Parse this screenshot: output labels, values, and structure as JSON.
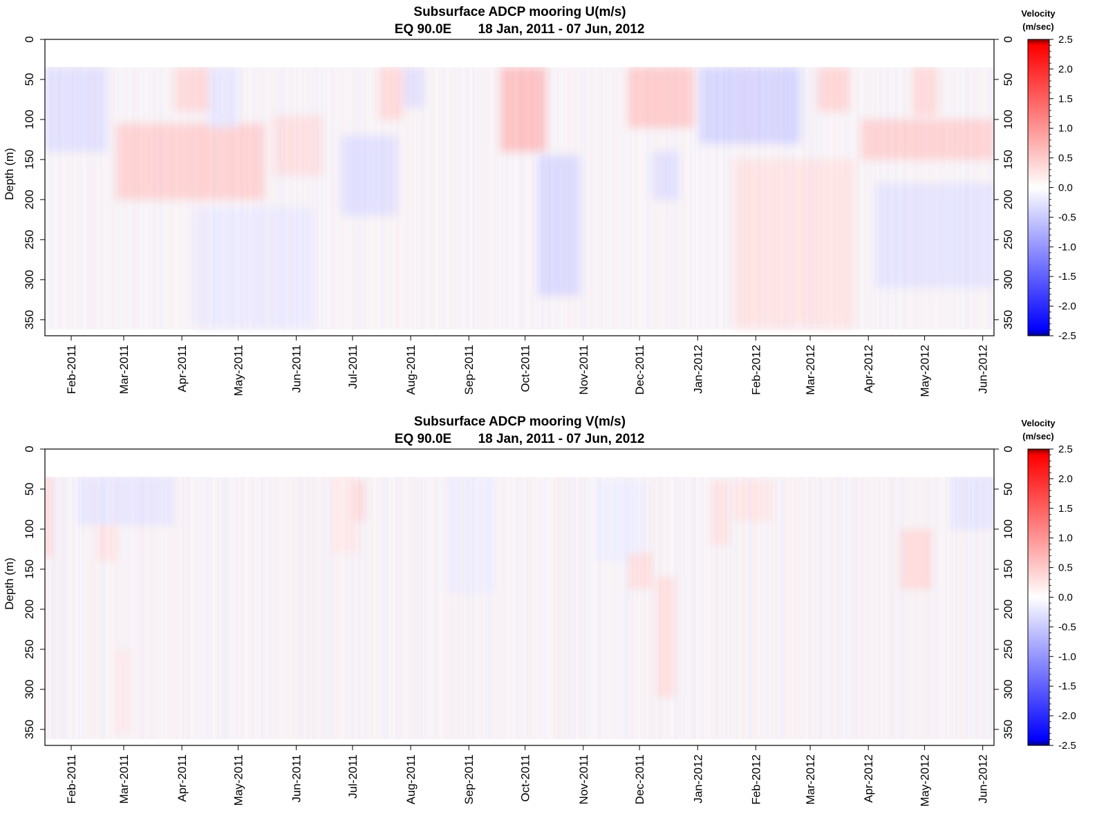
{
  "chart_data": [
    {
      "type": "heatmap",
      "title": "Subsurface ADCP mooring U(m/s)",
      "subtitle_location": "EQ 90.0E",
      "subtitle_period": "18 Jan, 2011 - 07 Jun, 2012",
      "ylabel": "Depth (m)",
      "xlim": [
        "2011-01-18",
        "2012-06-07"
      ],
      "ylim": [
        0,
        370
      ],
      "y_reversed": true,
      "data_top_depth": 35,
      "data_bottom_depth": 362,
      "y_ticks": [
        "0",
        "50",
        "100",
        "150",
        "200",
        "250",
        "300",
        "350"
      ],
      "x_tick_labels": [
        "Feb-2011",
        "Mar-2011",
        "Apr-2011",
        "May-2011",
        "Jun-2011",
        "Jul-2011",
        "Aug-2011",
        "Sep-2011",
        "Oct-2011",
        "Nov-2011",
        "Dec-2011",
        "Jan-2012",
        "Feb-2012",
        "Mar-2012",
        "Apr-2012",
        "May-2012",
        "Jun-2012"
      ],
      "x_tick_dates": [
        "2011-02-01",
        "2011-03-01",
        "2011-04-01",
        "2011-05-01",
        "2011-06-01",
        "2011-07-01",
        "2011-08-01",
        "2011-09-01",
        "2011-10-01",
        "2011-11-01",
        "2011-12-01",
        "2012-01-01",
        "2012-02-01",
        "2012-03-01",
        "2012-04-01",
        "2012-05-01",
        "2012-06-01"
      ],
      "features": [
        {
          "start": "2011-01-18",
          "end": "2011-02-20",
          "depth_top": 35,
          "depth_bottom": 140,
          "value": -0.4
        },
        {
          "start": "2011-02-25",
          "end": "2011-05-15",
          "depth_top": 105,
          "depth_bottom": 200,
          "value": 0.6
        },
        {
          "start": "2011-03-28",
          "end": "2011-04-18",
          "depth_top": 35,
          "depth_bottom": 90,
          "value": 0.5
        },
        {
          "start": "2011-04-15",
          "end": "2011-05-01",
          "depth_top": 35,
          "depth_bottom": 110,
          "value": -0.3
        },
        {
          "start": "2011-04-08",
          "end": "2011-06-10",
          "depth_top": 210,
          "depth_bottom": 360,
          "value": -0.25
        },
        {
          "start": "2011-05-20",
          "end": "2011-06-15",
          "depth_top": 95,
          "depth_bottom": 170,
          "value": 0.4
        },
        {
          "start": "2011-06-25",
          "end": "2011-07-25",
          "depth_top": 120,
          "depth_bottom": 220,
          "value": -0.4
        },
        {
          "start": "2011-07-15",
          "end": "2011-07-28",
          "depth_top": 35,
          "depth_bottom": 100,
          "value": 0.5
        },
        {
          "start": "2011-07-28",
          "end": "2011-08-08",
          "depth_top": 35,
          "depth_bottom": 85,
          "value": -0.4
        },
        {
          "start": "2011-09-18",
          "end": "2011-10-12",
          "depth_top": 35,
          "depth_bottom": 140,
          "value": 0.85
        },
        {
          "start": "2011-10-08",
          "end": "2011-10-30",
          "depth_top": 145,
          "depth_bottom": 320,
          "value": -0.5
        },
        {
          "start": "2011-11-25",
          "end": "2011-12-30",
          "depth_top": 35,
          "depth_bottom": 110,
          "value": 0.7
        },
        {
          "start": "2011-12-08",
          "end": "2011-12-22",
          "depth_top": 140,
          "depth_bottom": 200,
          "value": -0.4
        },
        {
          "start": "2012-01-02",
          "end": "2012-02-25",
          "depth_top": 35,
          "depth_bottom": 130,
          "value": -0.55
        },
        {
          "start": "2012-01-20",
          "end": "2012-03-25",
          "depth_top": 150,
          "depth_bottom": 360,
          "value": 0.35
        },
        {
          "start": "2012-03-05",
          "end": "2012-03-22",
          "depth_top": 35,
          "depth_bottom": 90,
          "value": 0.55
        },
        {
          "start": "2012-03-28",
          "end": "2012-06-07",
          "depth_top": 100,
          "depth_bottom": 150,
          "value": 0.6
        },
        {
          "start": "2012-04-05",
          "end": "2012-06-07",
          "depth_top": 180,
          "depth_bottom": 310,
          "value": -0.35
        },
        {
          "start": "2012-04-25",
          "end": "2012-05-08",
          "depth_top": 35,
          "depth_bottom": 95,
          "value": 0.5
        }
      ]
    },
    {
      "type": "heatmap",
      "title": "Subsurface ADCP mooring V(m/s)",
      "subtitle_location": "EQ 90.0E",
      "subtitle_period": "18 Jan, 2011 - 07 Jun, 2012",
      "ylabel": "Depth (m)",
      "xlim": [
        "2011-01-18",
        "2012-06-07"
      ],
      "ylim": [
        0,
        370
      ],
      "y_reversed": true,
      "data_top_depth": 35,
      "data_bottom_depth": 362,
      "y_ticks": [
        "0",
        "50",
        "100",
        "150",
        "200",
        "250",
        "300",
        "350"
      ],
      "x_tick_labels": [
        "Feb-2011",
        "Mar-2011",
        "Apr-2011",
        "May-2011",
        "Jun-2011",
        "Jul-2011",
        "Aug-2011",
        "Sep-2011",
        "Oct-2011",
        "Nov-2011",
        "Dec-2011",
        "Jan-2012",
        "Feb-2012",
        "Mar-2012",
        "Apr-2012",
        "May-2012",
        "Jun-2012"
      ],
      "x_tick_dates": [
        "2011-02-01",
        "2011-03-01",
        "2011-04-01",
        "2011-05-01",
        "2011-06-01",
        "2011-07-01",
        "2011-08-01",
        "2011-09-01",
        "2011-10-01",
        "2011-11-01",
        "2011-12-01",
        "2012-01-01",
        "2012-02-01",
        "2012-03-01",
        "2012-04-01",
        "2012-05-01",
        "2012-06-01"
      ],
      "features": [
        {
          "start": "2011-01-18",
          "end": "2011-01-22",
          "depth_top": 35,
          "depth_bottom": 135,
          "value": 0.5
        },
        {
          "start": "2011-02-05",
          "end": "2011-03-28",
          "depth_top": 35,
          "depth_bottom": 95,
          "value": -0.3
        },
        {
          "start": "2011-02-15",
          "end": "2011-02-25",
          "depth_top": 95,
          "depth_bottom": 140,
          "value": 0.35
        },
        {
          "start": "2011-02-25",
          "end": "2011-03-05",
          "depth_top": 250,
          "depth_bottom": 355,
          "value": 0.25
        },
        {
          "start": "2011-06-20",
          "end": "2011-07-05",
          "depth_top": 35,
          "depth_bottom": 130,
          "value": 0.25
        },
        {
          "start": "2011-07-01",
          "end": "2011-07-08",
          "depth_top": 40,
          "depth_bottom": 90,
          "value": 0.45
        },
        {
          "start": "2011-08-20",
          "end": "2011-09-15",
          "depth_top": 35,
          "depth_bottom": 180,
          "value": -0.2
        },
        {
          "start": "2011-11-08",
          "end": "2011-12-05",
          "depth_top": 40,
          "depth_bottom": 140,
          "value": -0.2
        },
        {
          "start": "2011-11-25",
          "end": "2011-12-08",
          "depth_top": 130,
          "depth_bottom": 175,
          "value": 0.4
        },
        {
          "start": "2011-12-10",
          "end": "2011-12-20",
          "depth_top": 160,
          "depth_bottom": 310,
          "value": 0.4
        },
        {
          "start": "2012-01-08",
          "end": "2012-01-18",
          "depth_top": 40,
          "depth_bottom": 120,
          "value": 0.35
        },
        {
          "start": "2012-01-20",
          "end": "2012-02-10",
          "depth_top": 40,
          "depth_bottom": 90,
          "value": 0.3
        },
        {
          "start": "2012-04-18",
          "end": "2012-05-05",
          "depth_top": 100,
          "depth_bottom": 175,
          "value": 0.45
        },
        {
          "start": "2012-05-15",
          "end": "2012-06-07",
          "depth_top": 35,
          "depth_bottom": 100,
          "value": -0.3
        }
      ]
    }
  ],
  "colorbar": {
    "title_line1": "Velocity",
    "title_line2": "(m/sec)",
    "range": [
      -2.5,
      2.5
    ],
    "tick_labels": [
      "2.5",
      "2.0",
      "1.5",
      "1.0",
      "0.5",
      "0.0",
      "-0.5",
      "-1.0",
      "-1.5",
      "-2.0",
      "-2.5"
    ],
    "colors": {
      "max": "#7f0000",
      "positive": "#ff0000",
      "zero": "#ffffff",
      "negative": "#0000ff",
      "min": "#00007f"
    }
  }
}
